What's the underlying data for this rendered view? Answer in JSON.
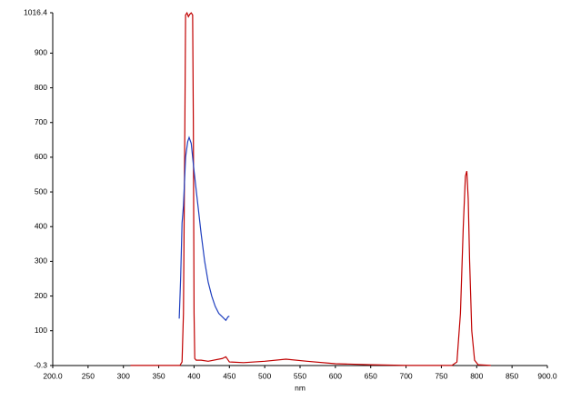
{
  "chart_data": {
    "type": "line",
    "x_label": "nm",
    "xlim": [
      200,
      900
    ],
    "ylim": [
      -0.3,
      1016.4
    ],
    "xticks": [
      {
        "value": 200,
        "label": "200.0"
      },
      250,
      300,
      350,
      400,
      450,
      500,
      550,
      600,
      650,
      700,
      750,
      800,
      850,
      {
        "value": 900,
        "label": "900.0"
      }
    ],
    "yticks": [
      -0.3,
      100,
      200,
      300,
      400,
      500,
      600,
      700,
      800,
      900,
      1016.4
    ],
    "grid": false,
    "series": [
      {
        "color": "#c00000",
        "x": [
          310,
          380,
          383,
          385,
          387,
          388,
          390,
          392,
          394,
          396,
          398,
          399,
          400,
          401,
          403,
          410,
          420,
          440,
          445,
          450,
          470,
          500,
          530,
          560,
          600,
          650,
          700,
          765,
          772,
          777,
          781,
          784,
          786,
          788,
          790,
          793,
          797,
          802,
          820
        ],
        "values": [
          0,
          0,
          10,
          150,
          700,
          1010,
          1016,
          1005,
          1012,
          1016,
          1010,
          700,
          150,
          20,
          15,
          15,
          12,
          20,
          25,
          10,
          8,
          12,
          18,
          12,
          5,
          2,
          0,
          0,
          10,
          150,
          400,
          545,
          560,
          480,
          300,
          100,
          15,
          2,
          0
        ]
      },
      {
        "color": "#1f3fbf",
        "x": [
          379,
          381,
          383,
          385,
          388,
          391,
          393,
          396,
          400,
          405,
          410,
          415,
          420,
          425,
          430,
          435,
          440,
          445,
          448,
          450
        ],
        "values": [
          135,
          250,
          410,
          460,
          600,
          645,
          657,
          640,
          560,
          470,
          380,
          300,
          240,
          200,
          170,
          150,
          140,
          130,
          140,
          142
        ]
      }
    ]
  }
}
